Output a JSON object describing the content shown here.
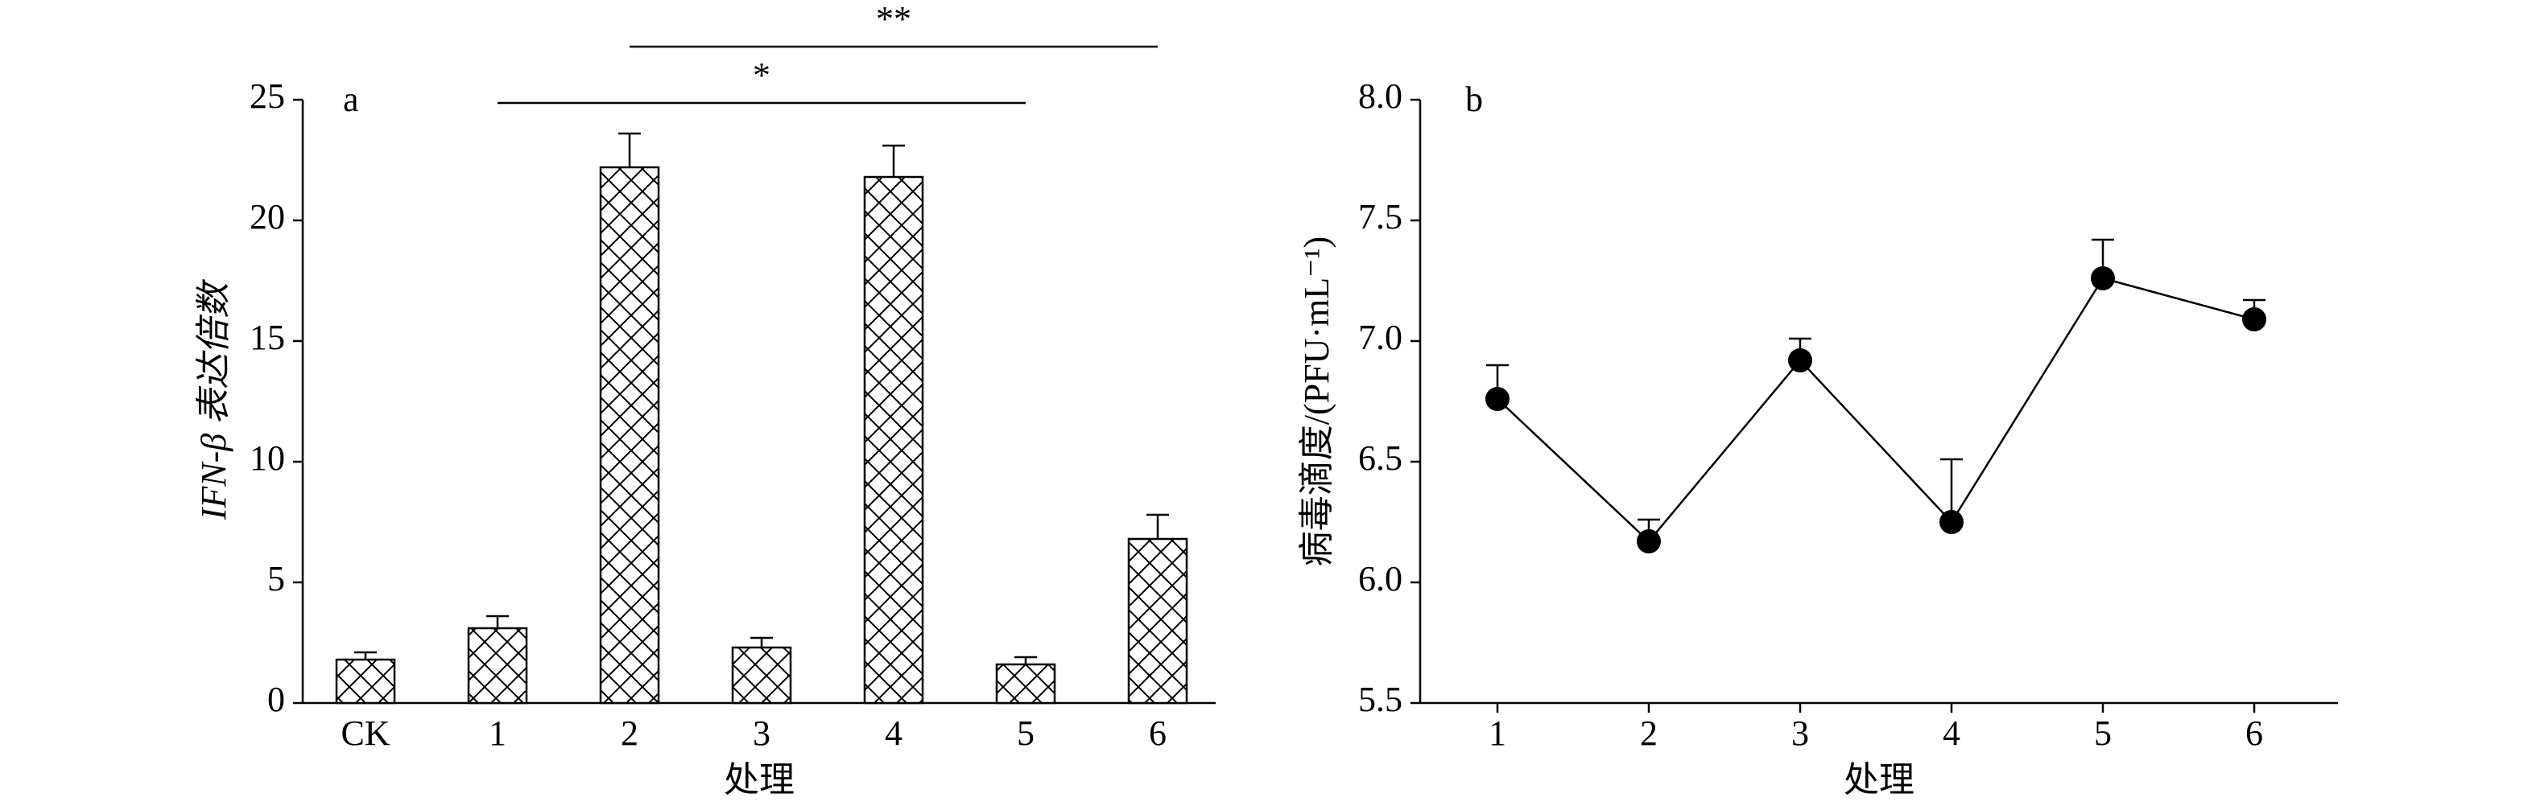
{
  "chart_data": [
    {
      "type": "bar",
      "panel": "a",
      "ylabel": "IFN-β 表达倍数",
      "xlabel": "处理",
      "categories": [
        "CK",
        "1",
        "2",
        "3",
        "4",
        "5",
        "6"
      ],
      "values": [
        1.8,
        3.1,
        22.2,
        2.3,
        21.8,
        1.6,
        6.8
      ],
      "errors": [
        0.3,
        0.5,
        1.4,
        0.4,
        1.3,
        0.3,
        1.0
      ],
      "color": "#000000",
      "hatch": "crosshatch",
      "ylim": [
        0,
        25
      ],
      "yticks": [
        0,
        5,
        10,
        15,
        20,
        25
      ],
      "annotations": [
        {
          "text": "*"
        },
        {
          "text": "**"
        }
      ]
    },
    {
      "type": "line",
      "panel": "b",
      "ylabel": "病毒滴度/(PFU·mL⁻¹)",
      "xlabel": "处理",
      "categories": [
        "1",
        "2",
        "3",
        "4",
        "5",
        "6"
      ],
      "values": [
        6.76,
        6.17,
        6.92,
        6.25,
        7.26,
        7.09
      ],
      "errors": [
        0.14,
        0.09,
        0.09,
        0.26,
        0.16,
        0.08
      ],
      "color": "#000000",
      "ylim": [
        5.5,
        8.0
      ],
      "yticks": [
        5.5,
        {
          "value": 6,
          "label": "6.0"
        },
        6.5,
        {
          "value": 7,
          "label": "7.0"
        },
        7.5,
        {
          "value": 8,
          "label": "8.0"
        }
      ]
    }
  ]
}
